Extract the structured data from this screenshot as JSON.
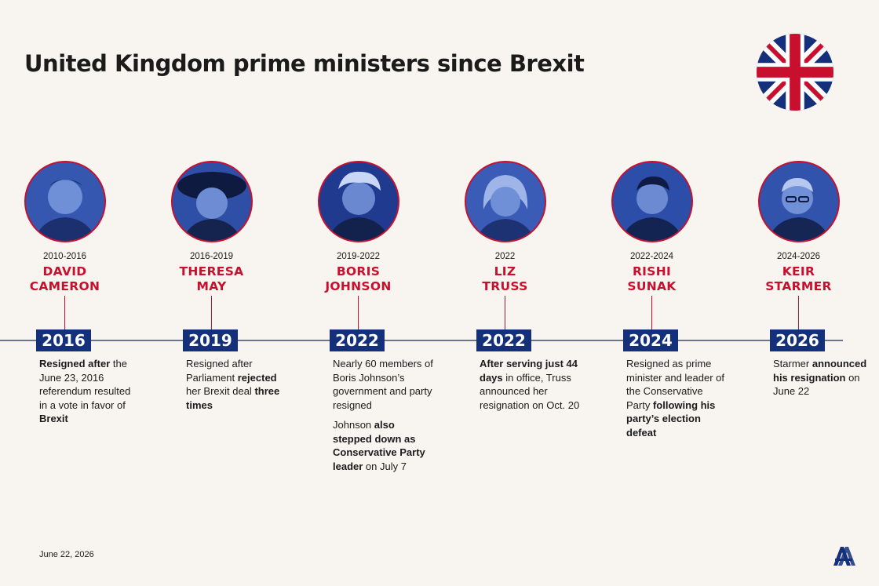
{
  "title": "United Kingdom prime ministers since Brexit",
  "date": "June 22, 2026",
  "colors": {
    "background": "#f8f5f0",
    "accent_red": "#c8102e",
    "navy": "#14307a",
    "photo_tint": "#2c4ea8",
    "axis": "#6b7789"
  },
  "flag_icon": "union-jack-icon",
  "logo_icon": "anadolu-agency-logo",
  "pms": [
    {
      "years": "2010-2016",
      "name_line1": "DAVID",
      "name_line2": "CAMERON",
      "year_label": "2016",
      "desc": [
        [
          [
            "Resigned after",
            true
          ],
          [
            " the June 23, 2016 referendum resulted in a vote in favor of ",
            false
          ],
          [
            "Brexit",
            true
          ]
        ]
      ]
    },
    {
      "years": "2016-2019",
      "name_line1": "THERESA",
      "name_line2": "MAY",
      "year_label": "2019",
      "desc": [
        [
          [
            "Resigned after Parliament ",
            false
          ],
          [
            "rejected",
            true
          ],
          [
            " her Brexit deal ",
            false
          ],
          [
            "three times",
            true
          ]
        ]
      ]
    },
    {
      "years": "2019-2022",
      "name_line1": "BORIS",
      "name_line2": "JOHNSON",
      "year_label": "2022",
      "desc": [
        [
          [
            "Nearly 60 members of Boris Johnson’s government and party resigned",
            false
          ]
        ],
        [
          [
            "Johnson ",
            false
          ],
          [
            "also stepped down as Conservative Party leader",
            true
          ],
          [
            " on July 7",
            false
          ]
        ]
      ]
    },
    {
      "years": "2022",
      "name_line1": "LIZ",
      "name_line2": "TRUSS",
      "year_label": "2022",
      "desc": [
        [
          [
            "After serving just 44 days",
            true
          ],
          [
            " in office, Truss announced her resignation on Oct. 20",
            false
          ]
        ]
      ]
    },
    {
      "years": "2022-2024",
      "name_line1": "RISHI",
      "name_line2": "SUNAK",
      "year_label": "2024",
      "desc": [
        [
          [
            "Resigned as prime minister and leader of the Conservative Party ",
            false
          ],
          [
            "following his party’s election defeat",
            true
          ]
        ]
      ]
    },
    {
      "years": "2024-2026",
      "name_line1": "KEIR",
      "name_line2": "STARMER",
      "year_label": "2026",
      "desc": [
        [
          [
            "Starmer ",
            false
          ],
          [
            "announced his resignation",
            true
          ],
          [
            " on June 22",
            false
          ]
        ]
      ]
    }
  ]
}
